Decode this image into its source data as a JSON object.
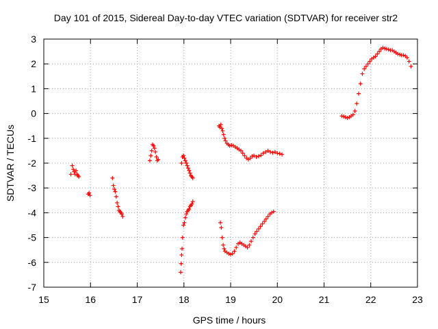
{
  "chart_data": {
    "type": "scatter",
    "title": "Day 101 of 2015, Sidereal Day-to-day VTEC variation (SDTVAR) for receiver str2",
    "xlabel": "GPS time / hours",
    "ylabel": "SDTVAR / TECUs",
    "xlim": [
      15,
      23
    ],
    "ylim": [
      -7,
      3
    ],
    "xticks": [
      15,
      16,
      17,
      18,
      19,
      20,
      21,
      22,
      23
    ],
    "yticks": [
      -7,
      -6,
      -5,
      -4,
      -3,
      -2,
      -1,
      0,
      1,
      2,
      3
    ],
    "grid": true,
    "marker": "+",
    "color": "#ff0000",
    "series": [
      {
        "name": "seg-15.6",
        "x": [
          15.58,
          15.61,
          15.63,
          15.65,
          15.67,
          15.69,
          15.71,
          15.73,
          15.75
        ],
        "y": [
          -2.45,
          -2.1,
          -2.25,
          -2.35,
          -2.45,
          -2.3,
          -2.45,
          -2.5,
          -2.55
        ]
      },
      {
        "name": "seg-15.95",
        "x": [
          15.95,
          15.97,
          15.99
        ],
        "y": [
          -3.25,
          -3.2,
          -3.3
        ]
      },
      {
        "name": "seg-16.5",
        "x": [
          16.47,
          16.49,
          16.51,
          16.53,
          16.55,
          16.57,
          16.59,
          16.61,
          16.63,
          16.65,
          16.67,
          16.69
        ],
        "y": [
          -2.6,
          -2.9,
          -3.05,
          -3.15,
          -3.35,
          -3.6,
          -3.75,
          -3.9,
          -3.95,
          -4.0,
          -4.05,
          -4.15
        ]
      },
      {
        "name": "seg-17.3",
        "x": [
          17.27,
          17.29,
          17.31,
          17.33,
          17.35,
          17.37,
          17.39,
          17.41,
          17.43,
          17.45
        ],
        "y": [
          -1.9,
          -1.7,
          -1.5,
          -1.25,
          -1.3,
          -1.4,
          -1.55,
          -1.75,
          -1.9,
          -1.85
        ]
      },
      {
        "name": "seg-18.0-upper",
        "x": [
          17.95,
          17.97,
          17.99,
          18.01,
          18.03,
          18.05,
          18.07,
          18.09,
          18.11,
          18.13,
          18.15,
          18.17,
          18.19
        ],
        "y": [
          -2.0,
          -1.75,
          -1.7,
          -1.8,
          -1.9,
          -2.0,
          -2.1,
          -2.2,
          -2.3,
          -2.4,
          -2.5,
          -2.55,
          -2.6
        ]
      },
      {
        "name": "seg-18.0-lower",
        "x": [
          17.93,
          17.94,
          17.95,
          17.96,
          17.97,
          17.99,
          18.01,
          18.03,
          18.05,
          18.07,
          18.09,
          18.11,
          18.13,
          18.15,
          18.17,
          18.19
        ],
        "y": [
          -6.4,
          -6.05,
          -5.7,
          -5.45,
          -5.0,
          -4.5,
          -4.4,
          -4.2,
          -4.05,
          -3.95,
          -3.9,
          -3.85,
          -3.75,
          -3.7,
          -3.65,
          -3.55
        ]
      },
      {
        "name": "seg-18.8-upper",
        "x": [
          18.75,
          18.77,
          18.79,
          18.81,
          18.83,
          18.85,
          18.87,
          18.89,
          18.92,
          18.95,
          18.98,
          19.02,
          19.06,
          19.1,
          19.14,
          19.18,
          19.22,
          19.26,
          19.3,
          19.34,
          19.38,
          19.42,
          19.46,
          19.5,
          19.55,
          19.6,
          19.65,
          19.7,
          19.75,
          19.8,
          19.85,
          19.9,
          19.95,
          20.0,
          20.05,
          20.1
        ],
        "y": [
          -0.5,
          -0.55,
          -0.45,
          -0.6,
          -0.7,
          -0.85,
          -1.0,
          -1.1,
          -1.2,
          -1.25,
          -1.3,
          -1.28,
          -1.3,
          -1.35,
          -1.4,
          -1.45,
          -1.5,
          -1.6,
          -1.7,
          -1.8,
          -1.85,
          -1.8,
          -1.72,
          -1.7,
          -1.75,
          -1.72,
          -1.68,
          -1.6,
          -1.55,
          -1.5,
          -1.55,
          -1.58,
          -1.55,
          -1.6,
          -1.62,
          -1.65
        ]
      },
      {
        "name": "seg-18.8-lower",
        "x": [
          18.78,
          18.8,
          18.82,
          18.84,
          18.86,
          18.88,
          18.92,
          18.96,
          19.0,
          19.04,
          19.08,
          19.12,
          19.16,
          19.2,
          19.24,
          19.28,
          19.32,
          19.36,
          19.4,
          19.44,
          19.48,
          19.52,
          19.56,
          19.6,
          19.64,
          19.68,
          19.72,
          19.76,
          19.8,
          19.84,
          19.88,
          19.92
        ],
        "y": [
          -4.4,
          -4.6,
          -5.0,
          -5.3,
          -5.45,
          -5.55,
          -5.6,
          -5.65,
          -5.68,
          -5.65,
          -5.55,
          -5.4,
          -5.25,
          -5.2,
          -5.25,
          -5.3,
          -5.35,
          -5.4,
          -5.3,
          -5.15,
          -5.0,
          -4.85,
          -4.75,
          -4.65,
          -4.55,
          -4.45,
          -4.35,
          -4.25,
          -4.15,
          -4.05,
          -4.0,
          -3.95
        ]
      },
      {
        "name": "seg-21.5",
        "x": [
          21.38,
          21.42,
          21.46,
          21.5,
          21.54,
          21.58,
          21.62,
          21.66,
          21.7,
          21.74,
          21.78,
          21.82,
          21.86,
          21.9,
          21.94,
          21.98,
          22.02,
          22.06,
          22.1,
          22.14,
          22.18,
          22.22,
          22.26,
          22.3,
          22.34,
          22.38,
          22.42,
          22.46,
          22.5,
          22.54,
          22.58,
          22.62,
          22.66,
          22.7,
          22.74,
          22.78,
          22.82,
          22.86
        ],
        "y": [
          -0.1,
          -0.12,
          -0.15,
          -0.18,
          -0.15,
          -0.1,
          -0.05,
          0.1,
          0.4,
          0.8,
          1.2,
          1.6,
          1.8,
          1.9,
          2.0,
          2.1,
          2.2,
          2.25,
          2.3,
          2.4,
          2.5,
          2.6,
          2.65,
          2.62,
          2.6,
          2.58,
          2.55,
          2.55,
          2.5,
          2.45,
          2.4,
          2.38,
          2.35,
          2.35,
          2.32,
          2.25,
          2.1,
          1.9
        ]
      }
    ]
  }
}
